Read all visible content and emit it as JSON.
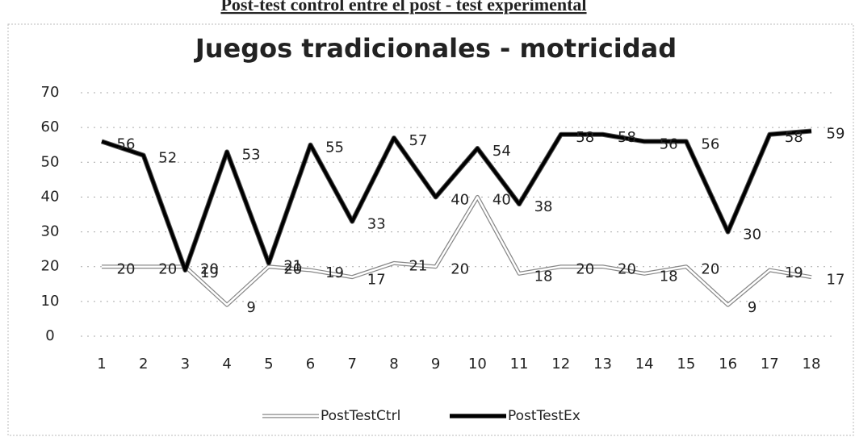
{
  "heading": "Post-test control entre el post - test experimental",
  "chart_data": {
    "type": "line",
    "title": "Juegos tradicionales - motricidad",
    "categories": [
      "1",
      "2",
      "3",
      "4",
      "5",
      "6",
      "7",
      "8",
      "9",
      "10",
      "11",
      "12",
      "13",
      "14",
      "15",
      "16",
      "17",
      "18"
    ],
    "series": [
      {
        "name": "PostTestCtrl",
        "color": "#ffffff",
        "values": [
          20,
          20,
          20,
          9,
          20,
          19,
          17,
          21,
          20,
          40,
          18,
          20,
          20,
          18,
          20,
          9,
          19,
          17
        ]
      },
      {
        "name": "PostTestEx",
        "color": "#000000",
        "values": [
          56,
          52,
          19,
          53,
          21,
          55,
          33,
          57,
          40,
          54,
          38,
          58,
          58,
          56,
          56,
          30,
          58,
          59
        ]
      }
    ],
    "ylim": [
      0,
      70
    ],
    "yticks": [
      0,
      10,
      20,
      30,
      40,
      50,
      60,
      70
    ],
    "grid": true,
    "legend": "bottom"
  }
}
